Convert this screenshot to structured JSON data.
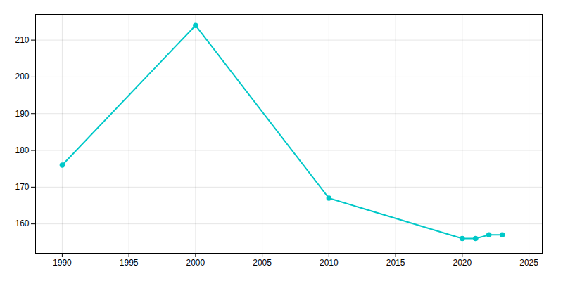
{
  "chart_data": {
    "type": "line",
    "x": [
      1990,
      2000,
      2010,
      2020,
      2021,
      2022,
      2023
    ],
    "values": [
      176,
      214,
      167,
      156,
      156,
      157,
      157
    ],
    "color": "#00c8c8",
    "marker": "circle",
    "xlim": [
      1988,
      2026
    ],
    "ylim": [
      152,
      217
    ],
    "xticks": [
      1990,
      1995,
      2000,
      2005,
      2010,
      2015,
      2020,
      2025
    ],
    "yticks": [
      160,
      170,
      180,
      190,
      200,
      210
    ],
    "grid": true
  }
}
